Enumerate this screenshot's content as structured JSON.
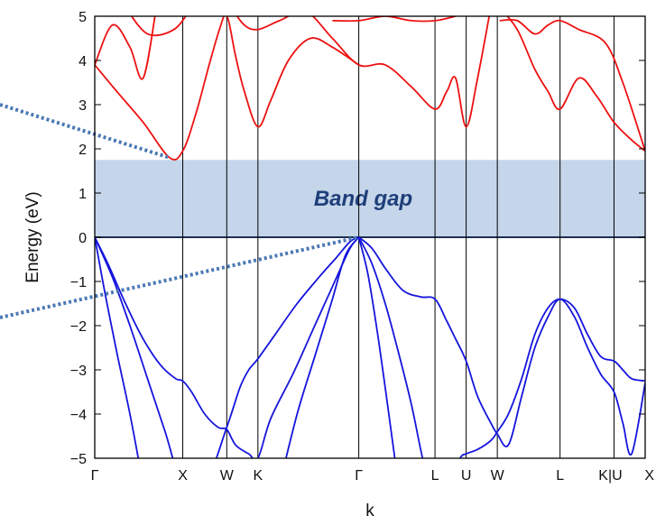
{
  "chart_data": {
    "type": "line",
    "title": "",
    "xlabel": "k",
    "ylabel": "Energy (eV)",
    "ylim": [
      -5,
      5
    ],
    "yticks": [
      "5",
      "4",
      "3",
      "2",
      "1",
      "0",
      "−1",
      "−2",
      "−3",
      "−4",
      "−5"
    ],
    "ytick_values": [
      5,
      4,
      3,
      2,
      1,
      0,
      -1,
      -2,
      -3,
      -4,
      -5
    ],
    "k_points": [
      "Γ",
      "X",
      "W",
      "K",
      "Γ",
      "L",
      "U",
      "W",
      "L",
      "K|U",
      "X"
    ],
    "k_positions": [
      0,
      1,
      1.5,
      1.854,
      3,
      3.866,
      4.22,
      4.574,
      5.287,
      5.9,
      6.254
    ],
    "band_gap": {
      "label": "Band gap",
      "from": 0,
      "to": 1.75,
      "fill": "#c5d6ea",
      "text_color": "#1f3f7a"
    },
    "colors": {
      "conduction": "#ee1111",
      "valence": "#1515dd",
      "annotation_line": "#4a78b5"
    },
    "series": [
      {
        "band": "conduction",
        "x": [
          0,
          0.25,
          0.55,
          0.85,
          1.0,
          1.15,
          1.3,
          1.4,
          1.5
        ],
        "y": [
          3.9,
          3.3,
          2.6,
          1.8,
          1.95,
          2.8,
          3.9,
          4.6,
          5.2
        ]
      },
      {
        "band": "conduction",
        "x": [
          0,
          0.2,
          0.4,
          0.55,
          0.7
        ],
        "y": [
          3.9,
          4.8,
          4.3,
          3.6,
          5.2
        ]
      },
      {
        "band": "conduction",
        "x": [
          0.35,
          0.6,
          0.9,
          1.1
        ],
        "y": [
          5.2,
          4.6,
          4.7,
          5.2
        ]
      },
      {
        "band": "conduction",
        "x": [
          1.45,
          1.52,
          1.6,
          1.7,
          1.854,
          2.0,
          2.2,
          2.45,
          2.7,
          3.0
        ],
        "y": [
          5.2,
          4.9,
          4.1,
          3.3,
          2.5,
          3.1,
          4.0,
          4.5,
          4.3,
          3.9
        ]
      },
      {
        "band": "conduction",
        "x": [
          1.55,
          1.7,
          1.854,
          2.1,
          2.4,
          2.7,
          3.0,
          3.3,
          3.6,
          3.866,
          4.0,
          4.1,
          4.22,
          4.35,
          4.5
        ],
        "y": [
          5.2,
          4.8,
          4.7,
          4.9,
          5.1,
          4.5,
          3.9,
          3.9,
          3.4,
          2.9,
          3.3,
          3.6,
          2.5,
          3.6,
          5.2
        ]
      },
      {
        "band": "conduction",
        "x": [
          2.7,
          3.0,
          3.3,
          3.6,
          3.866,
          4.1
        ],
        "y": [
          4.9,
          4.9,
          5.0,
          4.9,
          4.9,
          5.0
        ]
      },
      {
        "band": "conduction",
        "x": [
          4.6,
          4.8,
          5.0,
          5.15,
          5.287,
          5.5,
          5.7,
          5.9,
          6.1,
          6.254
        ],
        "y": [
          5.2,
          4.7,
          3.8,
          3.3,
          2.9,
          3.6,
          3.2,
          2.6,
          2.2,
          1.95
        ]
      },
      {
        "band": "conduction",
        "x": [
          4.6,
          4.8,
          5.0,
          5.15,
          5.287,
          5.5,
          5.8,
          6.0,
          6.254
        ],
        "y": [
          4.9,
          4.9,
          4.6,
          4.8,
          4.9,
          4.7,
          4.4,
          3.5,
          1.95
        ]
      },
      {
        "band": "valence",
        "x": [
          0,
          0.15,
          0.35,
          0.55,
          0.75,
          0.92,
          1.0,
          1.1,
          1.25,
          1.4,
          1.5,
          1.6,
          1.75,
          1.854,
          2.0,
          2.25,
          2.5,
          2.75,
          2.9,
          3.0
        ],
        "y": [
          0,
          -0.6,
          -1.5,
          -2.3,
          -2.9,
          -3.2,
          -3.25,
          -3.5,
          -4.0,
          -4.3,
          -4.35,
          -4.7,
          -4.9,
          -5.0,
          -4.1,
          -3.1,
          -2.0,
          -0.9,
          -0.25,
          0
        ]
      },
      {
        "band": "valence",
        "x": [
          0,
          0.2,
          0.4,
          0.6,
          0.8,
          1.0,
          1.25,
          1.5,
          1.65,
          1.75,
          1.854,
          2.05,
          2.3,
          2.55,
          2.75,
          2.9,
          3.0
        ],
        "y": [
          0,
          -0.9,
          -2.0,
          -3.2,
          -4.4,
          -5.6,
          -5.6,
          -4.3,
          -3.4,
          -3.0,
          -2.75,
          -2.2,
          -1.5,
          -0.9,
          -0.45,
          -0.1,
          0
        ]
      },
      {
        "band": "valence",
        "x": [
          0,
          0.12,
          0.25,
          0.4,
          0.55
        ],
        "y": [
          0,
          -1.3,
          -2.6,
          -4.0,
          -5.6
        ]
      },
      {
        "band": "valence",
        "x": [
          2.1,
          2.3,
          2.5,
          2.7,
          2.85,
          3.0
        ],
        "y": [
          -5.6,
          -4.0,
          -2.7,
          -1.4,
          -0.4,
          0
        ]
      },
      {
        "band": "valence",
        "x": [
          3.0,
          3.15,
          3.3,
          3.5,
          3.7,
          3.866,
          4.0,
          4.1,
          4.22,
          4.35,
          4.5,
          4.574,
          4.7,
          4.85,
          5.0,
          5.15,
          5.287,
          5.45,
          5.6,
          5.75,
          5.9,
          6.0,
          6.1,
          6.254
        ],
        "y": [
          0,
          -0.25,
          -0.7,
          -1.2,
          -1.35,
          -1.4,
          -1.9,
          -2.3,
          -2.8,
          -3.6,
          -4.2,
          -4.45,
          -4.7,
          -3.6,
          -2.5,
          -1.8,
          -1.4,
          -1.8,
          -2.5,
          -3.1,
          -3.5,
          -4.2,
          -4.9,
          -3.3
        ]
      },
      {
        "band": "valence",
        "x": [
          3.0,
          3.15,
          3.3,
          3.45,
          3.6,
          3.75,
          3.866,
          4.0,
          4.15,
          4.22,
          4.35,
          4.5,
          4.574,
          4.7,
          4.85,
          5.0,
          5.15,
          5.287,
          5.45,
          5.6,
          5.75,
          5.9,
          6.0,
          6.1,
          6.254
        ],
        "y": [
          0,
          -0.6,
          -1.5,
          -2.6,
          -3.8,
          -5.2,
          -5.6,
          -5.6,
          -5.0,
          -4.9,
          -4.8,
          -4.6,
          -4.4,
          -4.0,
          -3.2,
          -2.2,
          -1.6,
          -1.4,
          -1.6,
          -2.2,
          -2.7,
          -2.8,
          -3.0,
          -3.2,
          -3.25
        ]
      },
      {
        "band": "valence",
        "x": [
          3.0,
          3.1,
          3.2,
          3.3,
          3.45
        ],
        "y": [
          0,
          -0.8,
          -2.0,
          -3.4,
          -5.6
        ]
      }
    ]
  }
}
